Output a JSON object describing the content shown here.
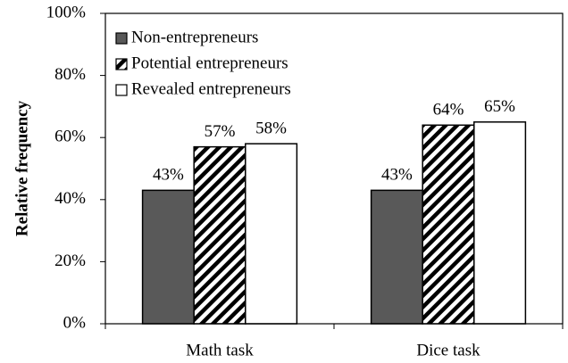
{
  "chart_data": {
    "type": "bar",
    "y_label": "Relative frequency",
    "categories": [
      "Math task",
      "Dice task"
    ],
    "series": [
      {
        "name": "Non-entrepreneurs",
        "color": "#595959",
        "values": [
          43,
          43
        ],
        "value_labels": [
          "43%",
          "43%"
        ]
      },
      {
        "name": "Potential entrepreneurs",
        "color": "#000000",
        "hatch": true,
        "values": [
          57,
          64
        ],
        "value_labels": [
          "57%",
          "64%"
        ]
      },
      {
        "name": "Revealed entrepreneurs",
        "color": "#ffffff",
        "values": [
          58,
          65
        ],
        "value_labels": [
          "58%",
          "65%"
        ]
      }
    ],
    "ylim": [
      0,
      100
    ],
    "yticks": [
      {
        "value": 0,
        "label": "0%"
      },
      {
        "value": 20,
        "label": "20%"
      },
      {
        "value": 40,
        "label": "40%"
      },
      {
        "value": 60,
        "label": "60%"
      },
      {
        "value": 80,
        "label": "80%"
      },
      {
        "value": 100,
        "label": "100%"
      }
    ],
    "legend": "upper-left",
    "grid": false
  }
}
